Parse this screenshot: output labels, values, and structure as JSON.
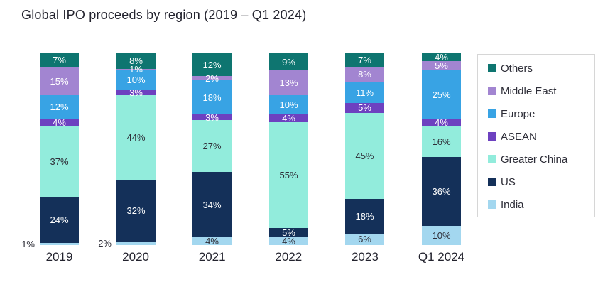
{
  "title": "Global IPO proceeds by region (2019 – Q1 2024)",
  "chart_data": {
    "type": "bar",
    "stacked": true,
    "title": "Global IPO proceeds by region (2019 – Q1 2024)",
    "unit": "%",
    "ylim": [
      0,
      100
    ],
    "grid": false,
    "legend_position": "right",
    "categories": [
      "2019",
      "2020",
      "2021",
      "2022",
      "2023",
      "Q1 2024"
    ],
    "series": [
      {
        "name": "Others",
        "color": "#0e7570",
        "label_color": "#ffffff",
        "values": [
          7,
          8,
          12,
          9,
          7,
          4
        ]
      },
      {
        "name": "Middle East",
        "color": "#a285d1",
        "label_color": "#ffffff",
        "values": [
          15,
          1,
          2,
          13,
          8,
          5
        ]
      },
      {
        "name": "Europe",
        "color": "#38a3e4",
        "label_color": "#ffffff",
        "values": [
          12,
          10,
          18,
          10,
          11,
          25
        ]
      },
      {
        "name": "ASEAN",
        "color": "#6d41c0",
        "label_color": "#ffffff",
        "values": [
          4,
          3,
          3,
          4,
          5,
          4
        ]
      },
      {
        "name": "Greater China",
        "color": "#92ecdc",
        "label_color": "#2e2e38",
        "values": [
          37,
          44,
          27,
          55,
          45,
          16
        ]
      },
      {
        "name": "US",
        "color": "#143059",
        "label_color": "#ffffff",
        "values": [
          24,
          32,
          34,
          5,
          18,
          36
        ]
      },
      {
        "name": "India",
        "color": "#a3d7ef",
        "label_color": "#2e2e38",
        "values": [
          1,
          2,
          4,
          4,
          6,
          10
        ]
      }
    ],
    "outside_labels": [
      {
        "series": "India",
        "category": "2019"
      },
      {
        "series": "India",
        "category": "2020"
      }
    ],
    "series_order_note": "series listed top-to-bottom as drawn in each stacked column"
  }
}
